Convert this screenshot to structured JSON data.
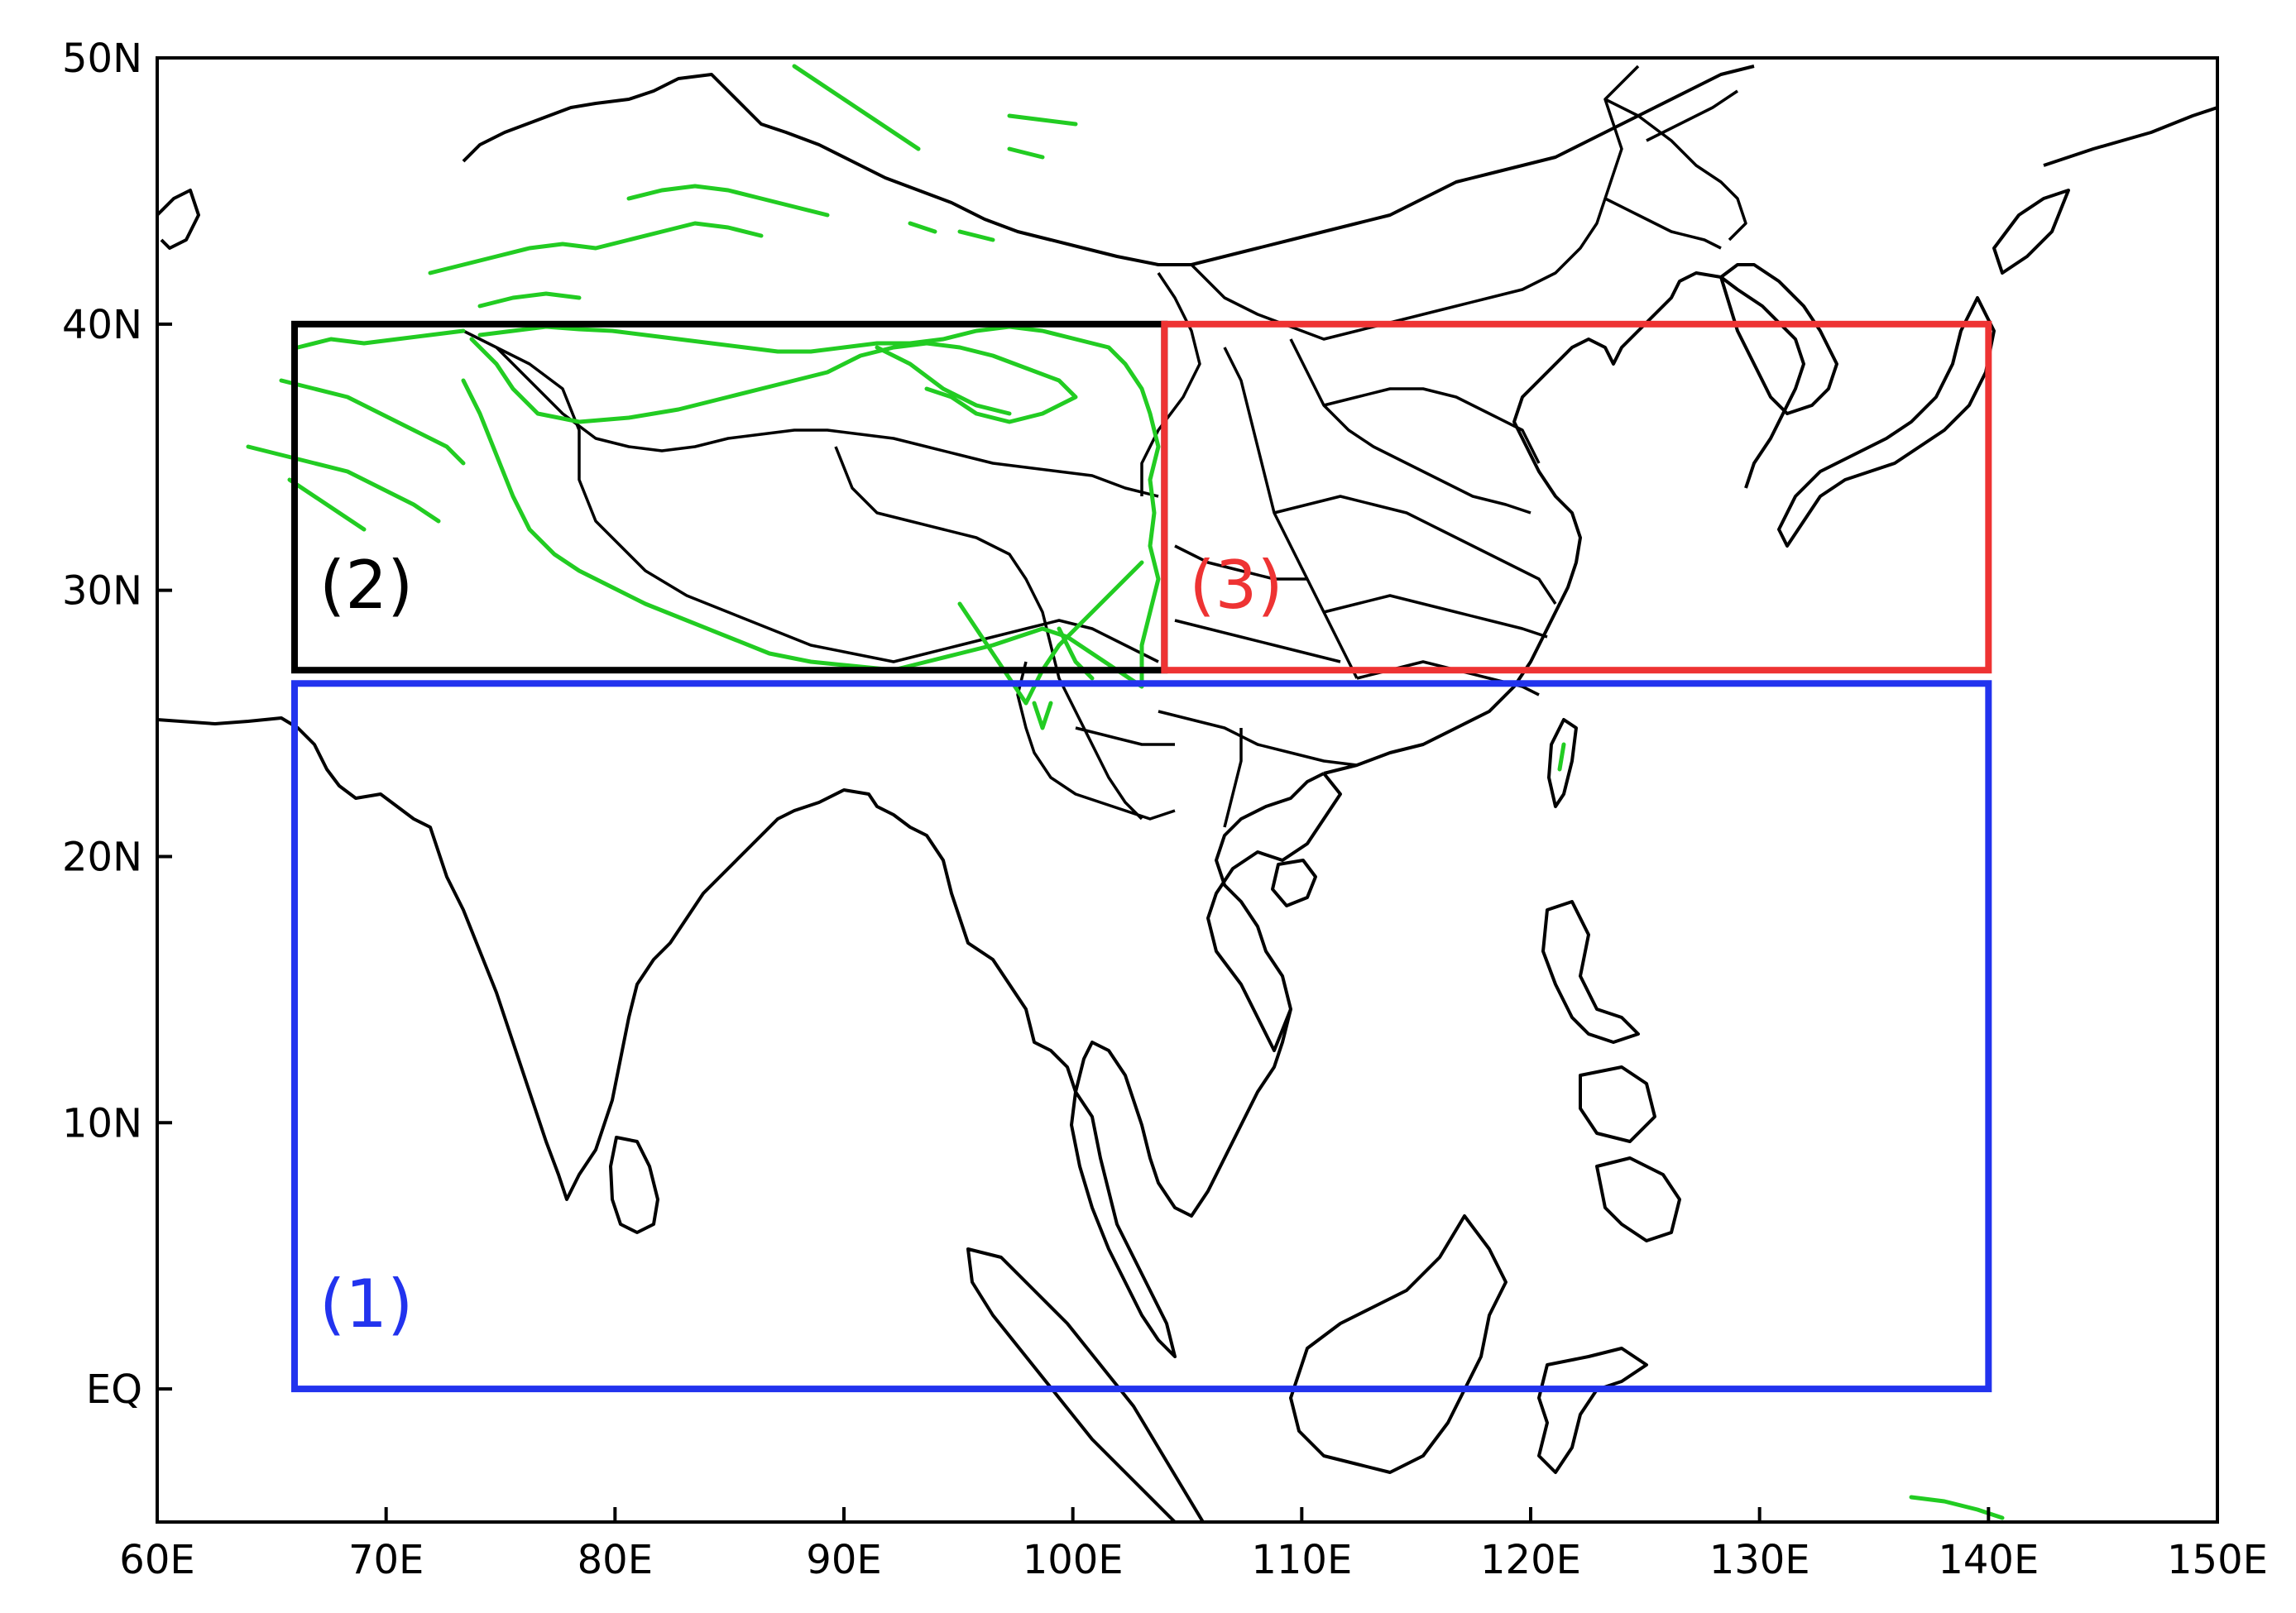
{
  "map": {
    "x_ticks": [
      "60E",
      "70E",
      "80E",
      "90E",
      "100E",
      "110E",
      "120E",
      "130E",
      "140E",
      "150E"
    ],
    "y_ticks": [
      "EQ",
      "10N",
      "20N",
      "30N",
      "40N",
      "50N"
    ],
    "extent": {
      "lon": [
        60,
        150
      ],
      "lat": [
        -5,
        50
      ]
    },
    "colors": {
      "frame": "#000000",
      "coastline": "#000000",
      "terrain_contour": "#22cc22",
      "region_1": "#2233ee",
      "region_2": "#000000",
      "region_3": "#ee3333"
    },
    "regions": [
      {
        "id": "1",
        "label": "(1)",
        "lon": [
          66,
          140
        ],
        "lat": [
          0,
          26.5
        ],
        "color": "#2233ee"
      },
      {
        "id": "2",
        "label": "(2)",
        "lon": [
          66,
          104
        ],
        "lat": [
          27,
          40
        ],
        "color": "#000000"
      },
      {
        "id": "3",
        "label": "(3)",
        "lon": [
          104,
          140
        ],
        "lat": [
          27,
          40
        ],
        "color": "#ee3333"
      }
    ]
  }
}
